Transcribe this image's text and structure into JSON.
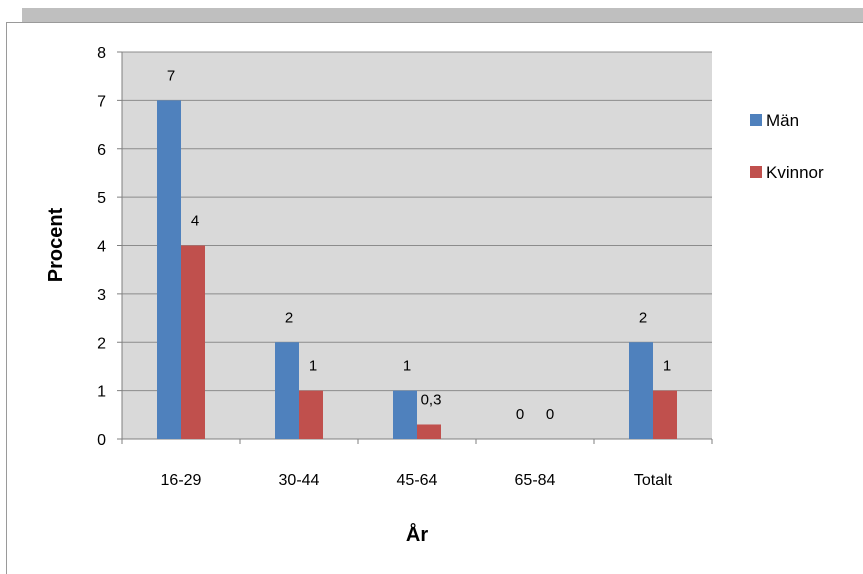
{
  "chart_data": {
    "type": "bar",
    "title": "",
    "xlabel": "År",
    "ylabel": "Procent",
    "ylim": [
      0,
      8
    ],
    "yticks": [
      0,
      1,
      2,
      3,
      4,
      5,
      6,
      7,
      8
    ],
    "categories": [
      "16-29",
      "30-44",
      "45-64",
      "65-84",
      "Totalt"
    ],
    "series": [
      {
        "name": "Män",
        "color": "#4f81bd",
        "values": [
          7,
          2,
          1,
          0,
          2
        ],
        "labels": [
          "7",
          "2",
          "1",
          "0",
          "2"
        ]
      },
      {
        "name": "Kvinnor",
        "color": "#c0504d",
        "values": [
          4,
          1,
          0.3,
          0,
          1
        ],
        "labels": [
          "4",
          "1",
          "0,3",
          "0",
          "1"
        ]
      }
    ],
    "grid": true,
    "plot_background": "#d9d9d9",
    "legend": "right"
  }
}
